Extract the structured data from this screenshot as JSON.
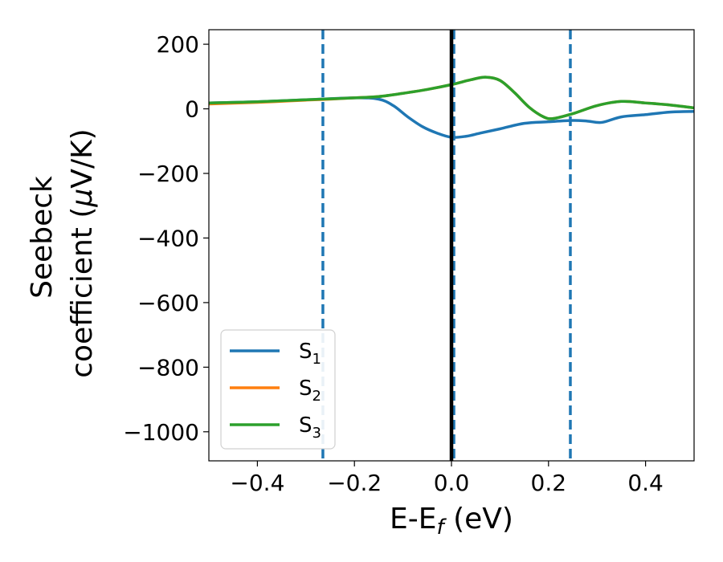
{
  "chart_data": {
    "type": "line",
    "title": "",
    "xlabel": {
      "main": "E-E",
      "sub": "f",
      "suffix": " (eV)"
    },
    "ylabel": {
      "line1": "Seebeck",
      "line2": "coefficient  (",
      "mu": "μ",
      "line2_suffix": "V/K)"
    },
    "xlim": [
      -0.5,
      0.5
    ],
    "ylim": [
      -1090,
      245
    ],
    "xticks": [
      -0.4,
      -0.2,
      0.0,
      0.2,
      0.4
    ],
    "xtick_labels": [
      "−0.4",
      "−0.2",
      "0.0",
      "0.2",
      "0.4"
    ],
    "yticks": [
      200,
      0,
      -200,
      -400,
      -600,
      -800,
      -1000
    ],
    "ytick_labels": [
      "200",
      "0",
      "−200",
      "−400",
      "−600",
      "−800",
      "−1000"
    ],
    "grid": false,
    "legend_position": "lower-left",
    "vlines": [
      {
        "x": -0.265,
        "style": "dashed",
        "color": "#1f77b4"
      },
      {
        "x": 0.005,
        "style": "dashed",
        "color": "#1f77b4"
      },
      {
        "x": 0.245,
        "style": "dashed",
        "color": "#1f77b4"
      },
      {
        "x": 0.0,
        "style": "solid",
        "color": "#000000"
      }
    ],
    "series": [
      {
        "name": "S",
        "sub": "1",
        "color": "#1f77b4",
        "x": [
          -0.5,
          -0.4,
          -0.3,
          -0.2,
          -0.15,
          -0.12,
          -0.09,
          -0.06,
          -0.03,
          0.0,
          0.03,
          0.06,
          0.1,
          0.15,
          0.2,
          0.25,
          0.28,
          0.31,
          0.35,
          0.4,
          0.45,
          0.5
        ],
        "values": [
          18,
          22,
          28,
          34,
          30,
          10,
          -25,
          -55,
          -75,
          -88,
          -85,
          -75,
          -62,
          -45,
          -40,
          -36,
          -38,
          -42,
          -25,
          -18,
          -10,
          -8
        ]
      },
      {
        "name": "S",
        "sub": "2",
        "color": "#ff7f0e",
        "x": [
          -0.5,
          -0.4,
          -0.3,
          -0.25,
          -0.2,
          -0.15,
          -0.1,
          -0.05,
          0.0,
          0.04,
          0.07,
          0.1,
          0.13,
          0.16,
          0.19,
          0.21,
          0.25,
          0.3,
          0.35,
          0.4,
          0.45,
          0.5
        ],
        "values": [
          15,
          20,
          27,
          30,
          34,
          38,
          48,
          60,
          75,
          90,
          98,
          88,
          50,
          5,
          -25,
          -30,
          -15,
          10,
          23,
          18,
          12,
          3
        ]
      },
      {
        "name": "S",
        "sub": "3",
        "color": "#2ca02c",
        "x": [
          -0.5,
          -0.4,
          -0.3,
          -0.25,
          -0.2,
          -0.15,
          -0.1,
          -0.05,
          0.0,
          0.04,
          0.07,
          0.1,
          0.13,
          0.16,
          0.19,
          0.21,
          0.25,
          0.3,
          0.35,
          0.4,
          0.45,
          0.5
        ],
        "values": [
          18,
          22,
          28,
          31,
          34,
          38,
          48,
          60,
          75,
          90,
          98,
          88,
          50,
          5,
          -25,
          -30,
          -15,
          10,
          23,
          18,
          12,
          3
        ]
      }
    ]
  }
}
